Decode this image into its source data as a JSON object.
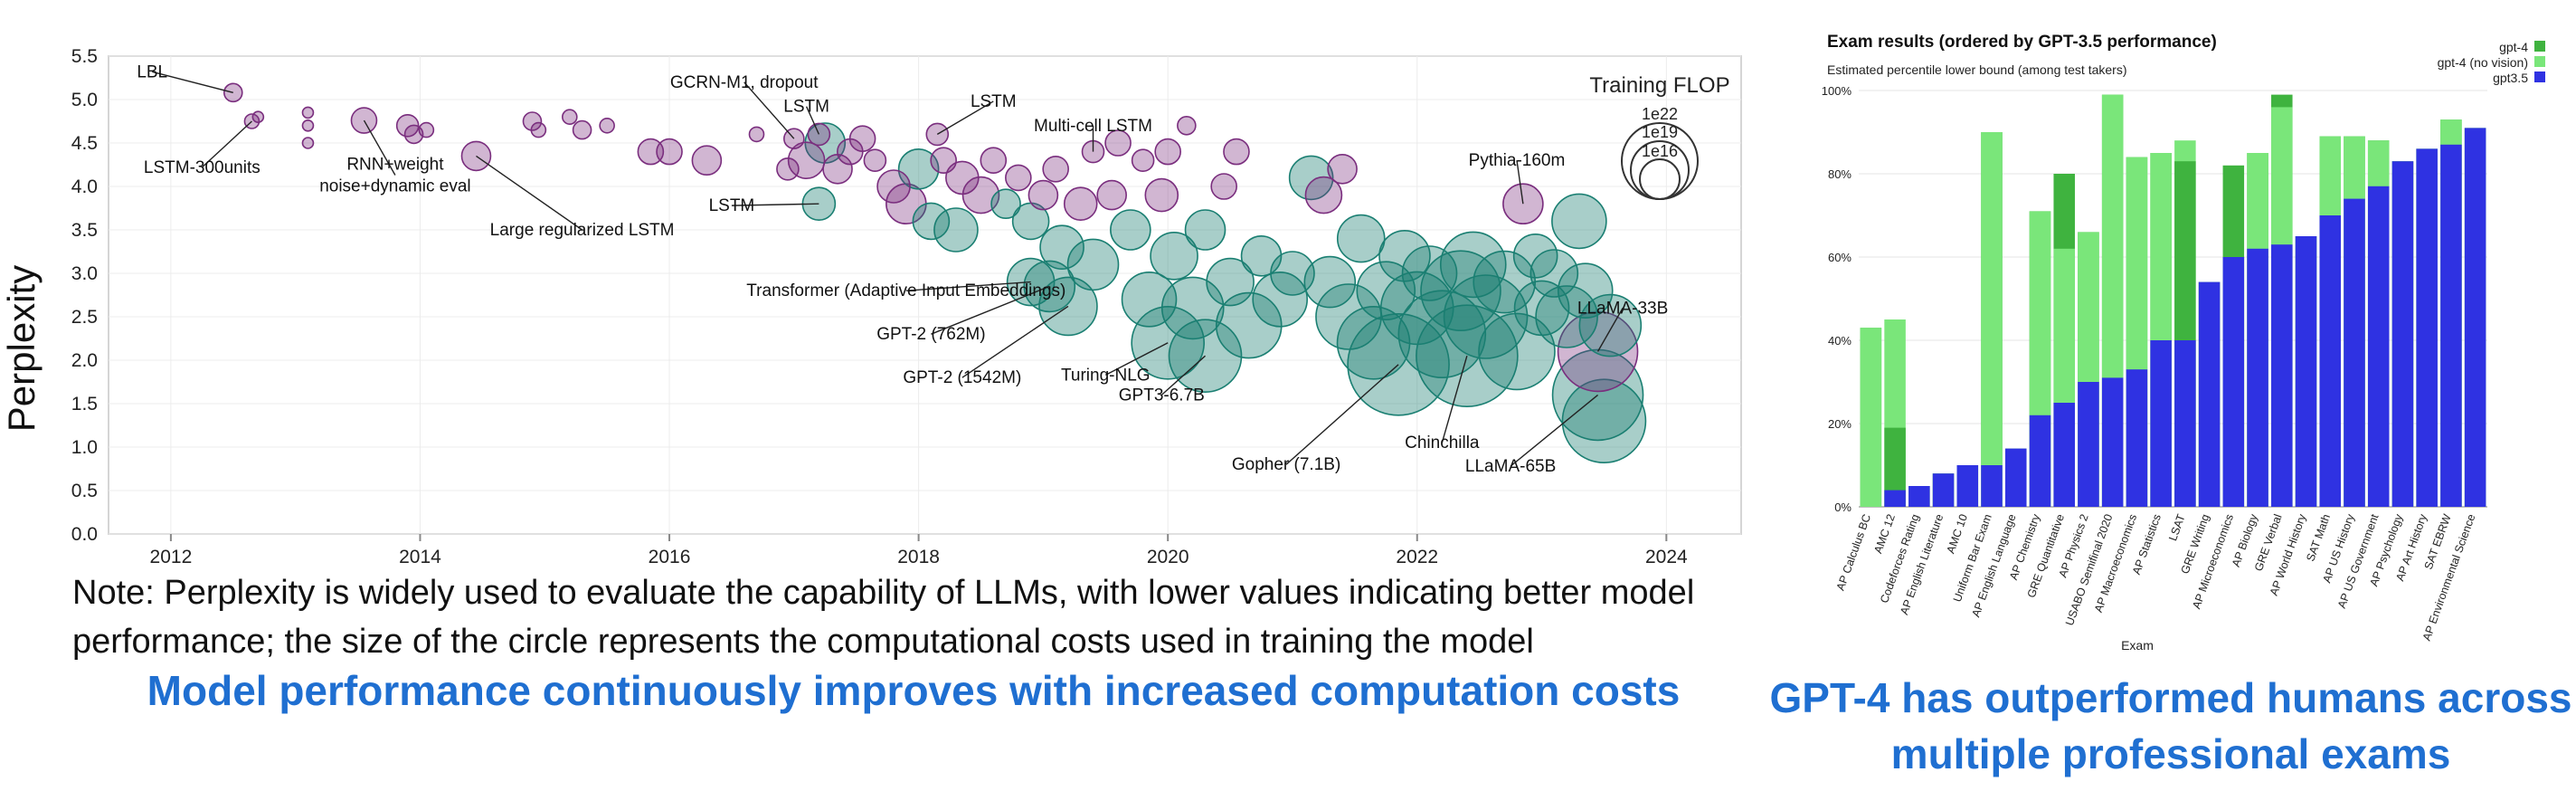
{
  "colors": {
    "teal": "#1a7f72",
    "purple": "#7a2e7e",
    "gpt4": "#3fb33f",
    "gpt4_novision": "#7ae67a",
    "gpt35": "#2f32e2",
    "headline": "#1f6fd1"
  },
  "note": "Note: Perplexity is widely used to evaluate the capability of LLMs, with lower values indicating better model performance; the size of the circle represents the computational costs used in training the model",
  "headline_left": "Model performance continuously improves with increased computation costs",
  "headline_right": "GPT-4 has outperformed humans across multiple professional exams",
  "chart_data": [
    {
      "type": "scatter",
      "ylabel": "Perplexity",
      "xlabel": "",
      "xlim": [
        2011.5,
        2024.6
      ],
      "ylim": [
        0,
        5.5
      ],
      "x_ticks": [
        "2012",
        "2014",
        "2016",
        "2018",
        "2020",
        "2022",
        "2024"
      ],
      "y_ticks": [
        "0.0",
        "0.5",
        "1.0",
        "1.5",
        "2.0",
        "2.5",
        "3.0",
        "3.5",
        "4.0",
        "4.5",
        "5.0",
        "5.5"
      ],
      "size_legend": {
        "title": "Training FLOP",
        "entries": [
          "1e22",
          "1e19",
          "1e16"
        ]
      },
      "labeled_points": [
        {
          "label": "LBL",
          "x": 2012.5,
          "y": 5.08,
          "r": 10,
          "color": "purple",
          "tx": 2011.85,
          "ty": 5.32
        },
        {
          "label": "LSTM-300units",
          "x": 2012.65,
          "y": 4.75,
          "r": 8,
          "color": "purple",
          "tx": 2012.25,
          "ty": 4.22
        },
        {
          "label": "RNN+weight\nnoise+dynamic eval",
          "x": 2013.55,
          "y": 4.76,
          "r": 14,
          "color": "purple",
          "tx": 2013.8,
          "ty": 4.13
        },
        {
          "label": "Large regularized LSTM",
          "x": 2014.45,
          "y": 4.35,
          "r": 16,
          "color": "purple",
          "tx": 2015.3,
          "ty": 3.5
        },
        {
          "label": "GCRN-M1, dropout",
          "x": 2017.0,
          "y": 4.55,
          "r": 11,
          "color": "purple",
          "tx": 2016.6,
          "ty": 5.2
        },
        {
          "label": "LSTM",
          "x": 2017.2,
          "y": 4.6,
          "r": 12,
          "color": "purple",
          "tx": 2017.1,
          "ty": 4.92
        },
        {
          "label": "LSTM",
          "x": 2017.2,
          "y": 3.8,
          "r": 18,
          "color": "teal",
          "tx": 2016.5,
          "ty": 3.78
        },
        {
          "label": "LSTM",
          "x": 2018.15,
          "y": 4.6,
          "r": 12,
          "color": "purple",
          "tx": 2018.6,
          "ty": 4.98
        },
        {
          "label": "Multi-cell LSTM",
          "x": 2019.4,
          "y": 4.4,
          "r": 12,
          "color": "purple",
          "tx": 2019.4,
          "ty": 4.7
        },
        {
          "label": "Transformer (Adaptive Input Embeddings)",
          "x": 2018.9,
          "y": 2.9,
          "r": 26,
          "color": "teal",
          "tx": 2017.9,
          "ty": 2.8
        },
        {
          "label": "GPT-2 (762M)",
          "x": 2019.05,
          "y": 2.85,
          "r": 28,
          "color": "teal",
          "tx": 2018.1,
          "ty": 2.3
        },
        {
          "label": "GPT-2 (1542M)",
          "x": 2019.2,
          "y": 2.62,
          "r": 32,
          "color": "teal",
          "tx": 2018.35,
          "ty": 1.8
        },
        {
          "label": "Turing-NLG",
          "x": 2020.0,
          "y": 2.2,
          "r": 40,
          "color": "teal",
          "tx": 2019.5,
          "ty": 1.83
        },
        {
          "label": "GPT3-6.7B",
          "x": 2020.3,
          "y": 2.05,
          "r": 40,
          "color": "teal",
          "tx": 2019.95,
          "ty": 1.6
        },
        {
          "label": "Pythia-160m",
          "x": 2022.85,
          "y": 3.8,
          "r": 22,
          "color": "purple",
          "tx": 2022.8,
          "ty": 4.3
        },
        {
          "label": "Gopher (7.1B)",
          "x": 2021.85,
          "y": 1.95,
          "r": 56,
          "color": "teal",
          "tx": 2020.95,
          "ty": 0.8
        },
        {
          "label": "Chinchilla",
          "x": 2022.4,
          "y": 2.05,
          "r": 56,
          "color": "teal",
          "tx": 2022.2,
          "ty": 1.05
        },
        {
          "label": "LLaMA-65B",
          "x": 2023.45,
          "y": 1.6,
          "r": 50,
          "color": "teal",
          "tx": 2022.75,
          "ty": 0.78
        },
        {
          "label": "LLaMA-33B",
          "x": 2023.45,
          "y": 2.1,
          "r": 44,
          "color": "purple",
          "tx": 2023.65,
          "ty": 2.6
        }
      ],
      "cloud_points": [
        {
          "x": 2012.7,
          "y": 4.8,
          "r": 6,
          "color": "purple"
        },
        {
          "x": 2013.1,
          "y": 4.85,
          "r": 6,
          "color": "purple"
        },
        {
          "x": 2013.1,
          "y": 4.7,
          "r": 6,
          "color": "purple"
        },
        {
          "x": 2013.1,
          "y": 4.5,
          "r": 6,
          "color": "purple"
        },
        {
          "x": 2013.9,
          "y": 4.7,
          "r": 12,
          "color": "purple"
        },
        {
          "x": 2013.95,
          "y": 4.6,
          "r": 10,
          "color": "purple"
        },
        {
          "x": 2014.05,
          "y": 4.65,
          "r": 8,
          "color": "purple"
        },
        {
          "x": 2014.9,
          "y": 4.75,
          "r": 10,
          "color": "purple"
        },
        {
          "x": 2014.95,
          "y": 4.65,
          "r": 8,
          "color": "purple"
        },
        {
          "x": 2015.2,
          "y": 4.8,
          "r": 8,
          "color": "purple"
        },
        {
          "x": 2015.3,
          "y": 4.65,
          "r": 10,
          "color": "purple"
        },
        {
          "x": 2015.5,
          "y": 4.7,
          "r": 8,
          "color": "purple"
        },
        {
          "x": 2015.85,
          "y": 4.4,
          "r": 14,
          "color": "purple"
        },
        {
          "x": 2016.0,
          "y": 4.4,
          "r": 14,
          "color": "purple"
        },
        {
          "x": 2016.3,
          "y": 4.3,
          "r": 16,
          "color": "purple"
        },
        {
          "x": 2016.7,
          "y": 4.6,
          "r": 8,
          "color": "purple"
        },
        {
          "x": 2016.95,
          "y": 4.2,
          "r": 12,
          "color": "purple"
        },
        {
          "x": 2017.1,
          "y": 4.3,
          "r": 20,
          "color": "purple"
        },
        {
          "x": 2017.25,
          "y": 4.5,
          "r": 22,
          "color": "teal"
        },
        {
          "x": 2017.35,
          "y": 4.2,
          "r": 16,
          "color": "purple"
        },
        {
          "x": 2017.45,
          "y": 4.4,
          "r": 14,
          "color": "purple"
        },
        {
          "x": 2017.55,
          "y": 4.55,
          "r": 14,
          "color": "purple"
        },
        {
          "x": 2017.65,
          "y": 4.3,
          "r": 12,
          "color": "purple"
        },
        {
          "x": 2017.8,
          "y": 4.0,
          "r": 18,
          "color": "purple"
        },
        {
          "x": 2017.9,
          "y": 3.8,
          "r": 22,
          "color": "purple"
        },
        {
          "x": 2018.0,
          "y": 4.2,
          "r": 22,
          "color": "teal"
        },
        {
          "x": 2018.1,
          "y": 3.6,
          "r": 20,
          "color": "teal"
        },
        {
          "x": 2018.2,
          "y": 4.3,
          "r": 14,
          "color": "purple"
        },
        {
          "x": 2018.3,
          "y": 3.5,
          "r": 24,
          "color": "teal"
        },
        {
          "x": 2018.35,
          "y": 4.1,
          "r": 18,
          "color": "purple"
        },
        {
          "x": 2018.5,
          "y": 3.9,
          "r": 20,
          "color": "purple"
        },
        {
          "x": 2018.6,
          "y": 4.3,
          "r": 14,
          "color": "purple"
        },
        {
          "x": 2018.7,
          "y": 3.8,
          "r": 16,
          "color": "teal"
        },
        {
          "x": 2018.8,
          "y": 4.1,
          "r": 14,
          "color": "purple"
        },
        {
          "x": 2018.9,
          "y": 3.6,
          "r": 20,
          "color": "teal"
        },
        {
          "x": 2019.0,
          "y": 3.9,
          "r": 16,
          "color": "purple"
        },
        {
          "x": 2019.1,
          "y": 4.2,
          "r": 14,
          "color": "purple"
        },
        {
          "x": 2019.15,
          "y": 3.3,
          "r": 24,
          "color": "teal"
        },
        {
          "x": 2019.3,
          "y": 3.8,
          "r": 18,
          "color": "purple"
        },
        {
          "x": 2019.4,
          "y": 3.1,
          "r": 28,
          "color": "teal"
        },
        {
          "x": 2019.55,
          "y": 3.9,
          "r": 16,
          "color": "purple"
        },
        {
          "x": 2019.6,
          "y": 4.5,
          "r": 14,
          "color": "purple"
        },
        {
          "x": 2019.7,
          "y": 3.5,
          "r": 22,
          "color": "teal"
        },
        {
          "x": 2019.8,
          "y": 4.3,
          "r": 12,
          "color": "purple"
        },
        {
          "x": 2019.85,
          "y": 2.7,
          "r": 30,
          "color": "teal"
        },
        {
          "x": 2019.95,
          "y": 3.9,
          "r": 18,
          "color": "purple"
        },
        {
          "x": 2020.0,
          "y": 4.4,
          "r": 14,
          "color": "purple"
        },
        {
          "x": 2020.05,
          "y": 3.2,
          "r": 26,
          "color": "teal"
        },
        {
          "x": 2020.15,
          "y": 4.7,
          "r": 10,
          "color": "purple"
        },
        {
          "x": 2020.2,
          "y": 2.6,
          "r": 34,
          "color": "teal"
        },
        {
          "x": 2020.3,
          "y": 3.5,
          "r": 22,
          "color": "teal"
        },
        {
          "x": 2020.45,
          "y": 4.0,
          "r": 14,
          "color": "purple"
        },
        {
          "x": 2020.5,
          "y": 2.9,
          "r": 26,
          "color": "teal"
        },
        {
          "x": 2020.55,
          "y": 4.4,
          "r": 14,
          "color": "purple"
        },
        {
          "x": 2020.65,
          "y": 2.4,
          "r": 36,
          "color": "teal"
        },
        {
          "x": 2020.75,
          "y": 3.2,
          "r": 22,
          "color": "teal"
        },
        {
          "x": 2020.9,
          "y": 2.7,
          "r": 30,
          "color": "teal"
        },
        {
          "x": 2021.0,
          "y": 3.0,
          "r": 24,
          "color": "teal"
        },
        {
          "x": 2021.15,
          "y": 4.1,
          "r": 24,
          "color": "teal"
        },
        {
          "x": 2021.25,
          "y": 3.9,
          "r": 20,
          "color": "purple"
        },
        {
          "x": 2021.3,
          "y": 2.9,
          "r": 28,
          "color": "teal"
        },
        {
          "x": 2021.4,
          "y": 4.2,
          "r": 16,
          "color": "purple"
        },
        {
          "x": 2021.45,
          "y": 2.5,
          "r": 36,
          "color": "teal"
        },
        {
          "x": 2021.55,
          "y": 3.4,
          "r": 26,
          "color": "teal"
        },
        {
          "x": 2021.65,
          "y": 2.2,
          "r": 40,
          "color": "teal"
        },
        {
          "x": 2021.75,
          "y": 2.8,
          "r": 32,
          "color": "teal"
        },
        {
          "x": 2021.9,
          "y": 3.2,
          "r": 28,
          "color": "teal"
        },
        {
          "x": 2022.0,
          "y": 2.6,
          "r": 40,
          "color": "teal"
        },
        {
          "x": 2022.1,
          "y": 3.0,
          "r": 30,
          "color": "teal"
        },
        {
          "x": 2022.2,
          "y": 2.3,
          "r": 48,
          "color": "teal"
        },
        {
          "x": 2022.35,
          "y": 2.8,
          "r": 44,
          "color": "teal"
        },
        {
          "x": 2022.45,
          "y": 3.1,
          "r": 36,
          "color": "teal"
        },
        {
          "x": 2022.55,
          "y": 2.5,
          "r": 46,
          "color": "teal"
        },
        {
          "x": 2022.7,
          "y": 2.9,
          "r": 34,
          "color": "teal"
        },
        {
          "x": 2022.8,
          "y": 2.1,
          "r": 42,
          "color": "teal"
        },
        {
          "x": 2022.95,
          "y": 3.2,
          "r": 24,
          "color": "teal"
        },
        {
          "x": 2023.0,
          "y": 2.6,
          "r": 30,
          "color": "teal"
        },
        {
          "x": 2023.1,
          "y": 3.0,
          "r": 26,
          "color": "teal"
        },
        {
          "x": 2023.2,
          "y": 2.5,
          "r": 34,
          "color": "teal"
        },
        {
          "x": 2023.3,
          "y": 3.6,
          "r": 30,
          "color": "teal"
        },
        {
          "x": 2023.35,
          "y": 2.8,
          "r": 30,
          "color": "teal"
        },
        {
          "x": 2023.5,
          "y": 1.3,
          "r": 46,
          "color": "teal"
        },
        {
          "x": 2023.55,
          "y": 2.4,
          "r": 34,
          "color": "teal"
        }
      ]
    },
    {
      "type": "bar",
      "title": "Exam results (ordered by GPT-3.5 performance)",
      "subtitle": "Estimated percentile lower bound (among test takers)",
      "xlabel": "Exam",
      "ylabel": "",
      "ylim": [
        0,
        100
      ],
      "y_ticks": [
        "0%",
        "20%",
        "40%",
        "60%",
        "80%",
        "100%"
      ],
      "legend": [
        "gpt-4",
        "gpt-4 (no vision)",
        "gpt3.5"
      ],
      "categories": [
        "AP Calculus BC",
        "AMC 12",
        "Codeforces Rating",
        "AP English Literature",
        "AMC 10",
        "Uniform Bar Exam",
        "AP English Language",
        "AP Chemistry",
        "GRE Quantitative",
        "AP Physics 2",
        "USABO Semifinal 2020",
        "AP Macroeconomics",
        "AP Statistics",
        "LSAT",
        "GRE Writing",
        "AP Microeconomics",
        "AP Biology",
        "GRE Verbal",
        "AP World History",
        "SAT Math",
        "AP US History",
        "AP US Government",
        "AP Psychology",
        "AP Art History",
        "SAT EBRW",
        "AP Environmental Science"
      ],
      "series": [
        {
          "name": "gpt3.5",
          "values": [
            0,
            4,
            5,
            8,
            10,
            10,
            14,
            22,
            25,
            30,
            31,
            33,
            40,
            40,
            54,
            60,
            62,
            63,
            65,
            70,
            74,
            77,
            83,
            86,
            87,
            91
          ]
        },
        {
          "name": "gpt-4 (no vision)",
          "values": [
            43,
            45,
            5,
            8,
            10,
            90,
            14,
            71,
            62,
            66,
            99,
            84,
            85,
            88,
            54,
            60,
            85,
            96,
            65,
            89,
            89,
            88,
            83,
            86,
            93,
            91
          ]
        },
        {
          "name": "gpt-4",
          "values": [
            43,
            19,
            5,
            8,
            10,
            90,
            14,
            71,
            80,
            66,
            99,
            84,
            85,
            83,
            54,
            82,
            85,
            99,
            65,
            89,
            89,
            88,
            83,
            86,
            93,
            91
          ]
        }
      ]
    }
  ]
}
